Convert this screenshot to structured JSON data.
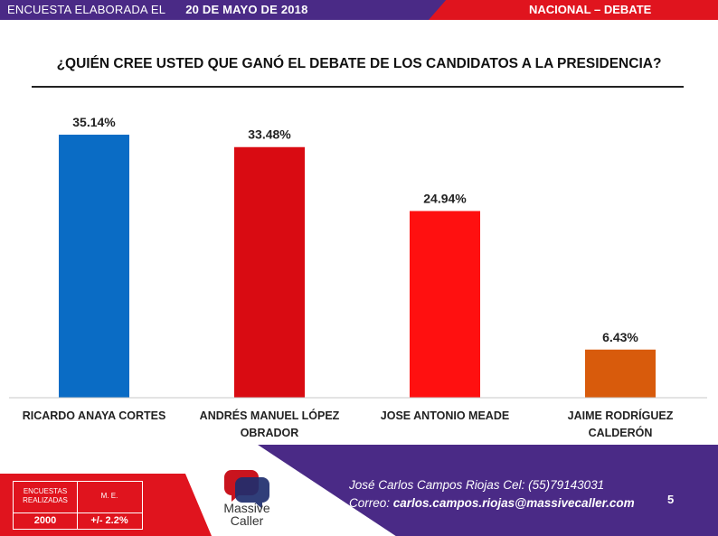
{
  "header": {
    "survey_label": "ENCUESTA ELABORADA EL",
    "survey_date": "20 DE MAYO  DE 2018",
    "section": "NACIONAL – DEBATE"
  },
  "question": "¿QUIÉN CREE USTED QUE GANÓ EL DEBATE DE LOS CANDIDATOS A LA PRESIDENCIA?",
  "chart_data": {
    "type": "bar",
    "categories": [
      [
        "RICARDO ANAYA CORTES"
      ],
      [
        "ANDRÉS MANUEL LÓPEZ",
        "OBRADOR"
      ],
      [
        "JOSE ANTONIO MEADE"
      ],
      [
        "JAIME RODRÍGUEZ",
        "CALDERÓN"
      ]
    ],
    "values": [
      35.14,
      33.48,
      24.94,
      6.43
    ],
    "value_labels": [
      "35.14%",
      "33.48%",
      "24.94%",
      "6.43%"
    ],
    "colors": [
      "#0a6cc5",
      "#d90b12",
      "#ff1010",
      "#d85b0c"
    ],
    "ylim": [
      0,
      40
    ],
    "grid": false
  },
  "footer": {
    "stats": {
      "encuestas_label": "ENCUESTAS REALIZADAS",
      "me_label": "M. E.",
      "encuestas_value": "2000",
      "me_value": "+/- 2.2%"
    },
    "logo_text": [
      "Massive",
      "Caller"
    ],
    "contact_line1": "José Carlos Campos Riojas Cel: (55)79143031",
    "contact_line2_label": "Correo:",
    "contact_line2_email": "carlos.campos.riojas@massivecaller.com",
    "page_number": "5"
  },
  "colors": {
    "purple": "#4a2a86",
    "red": "#e0141e"
  }
}
